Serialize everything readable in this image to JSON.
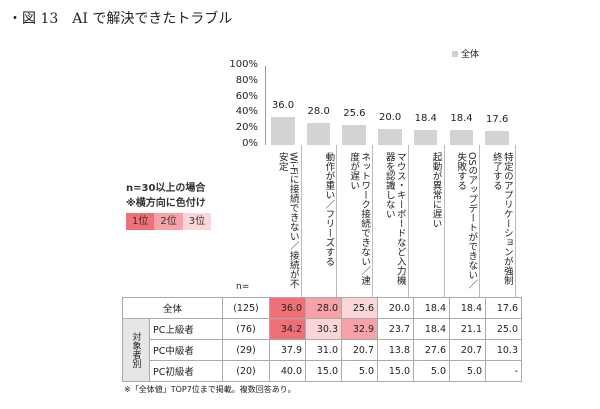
{
  "title": "・図 13　AI で解決できたトラブル",
  "legend": "全体",
  "conditions": {
    "line1": "n=30以上の場合",
    "line2": "※横方向に色付け",
    "ranks": [
      "1位",
      "2位",
      "3位"
    ]
  },
  "colors": {
    "rank1": "#f07078",
    "rank2": "#f7a2a8",
    "rank3": "#fbd6d9",
    "bar": "#d3d3d3"
  },
  "chart_data": {
    "type": "bar",
    "categories": [
      "Wi-Fiに接続できない／接続が不安定",
      "動作が重い／フリーズする",
      "ネットワーク接続できない／速度が遅い",
      "マウス・キーボードなど入力機器を認識しない",
      "起動が異常に遅い",
      "OSのアップデートができない／失敗する",
      "特定のアプリケーションが強制終了する"
    ],
    "series": [
      {
        "name": "全体",
        "values": [
          36.0,
          28.0,
          25.6,
          20.0,
          18.4,
          18.4,
          17.6
        ]
      }
    ],
    "value_labels": [
      "36.0",
      "28.0",
      "25.6",
      "20.0",
      "18.4",
      "18.4",
      "17.6"
    ],
    "yticks": [
      "100%",
      "80%",
      "60%",
      "40%",
      "20%",
      "0%"
    ],
    "ylim": [
      0,
      100
    ]
  },
  "table": {
    "n_header": "n=",
    "group_label": "対象者別",
    "rows": [
      {
        "label": "全体",
        "n": "(125)",
        "values": [
          "36.0",
          "28.0",
          "25.6",
          "20.0",
          "18.4",
          "18.4",
          "17.6"
        ],
        "ranks": [
          1,
          2,
          3,
          0,
          0,
          0,
          0
        ]
      },
      {
        "label": "PC上級者",
        "n": "(76)",
        "values": [
          "34.2",
          "30.3",
          "32.9",
          "23.7",
          "18.4",
          "21.1",
          "25.0"
        ],
        "ranks": [
          1,
          3,
          2,
          0,
          0,
          0,
          0
        ]
      },
      {
        "label": "PC中級者",
        "n": "(29)",
        "values": [
          "37.9",
          "31.0",
          "20.7",
          "13.8",
          "27.6",
          "20.7",
          "10.3"
        ],
        "ranks": [
          0,
          0,
          0,
          0,
          0,
          0,
          0
        ]
      },
      {
        "label": "PC初級者",
        "n": "(20)",
        "values": [
          "40.0",
          "15.0",
          "5.0",
          "15.0",
          "5.0",
          "5.0",
          "-"
        ],
        "ranks": [
          0,
          0,
          0,
          0,
          0,
          0,
          0
        ]
      }
    ]
  },
  "note": "※「全体値」TOP7位まで掲載。複数回答あり。"
}
